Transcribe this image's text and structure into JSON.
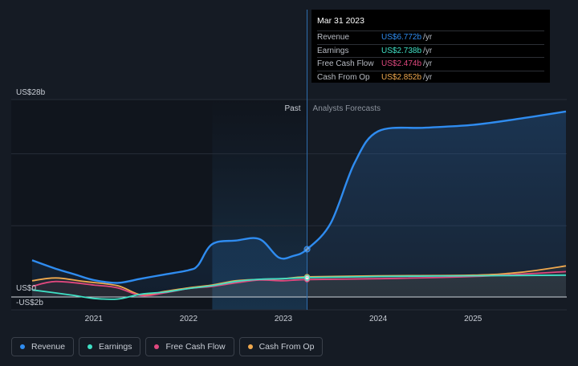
{
  "chart_data": {
    "type": "line",
    "y_unit_labels": {
      "top": "US$28b",
      "zero": "US$0",
      "bottom": "-US$2b"
    },
    "ylim": [
      -2,
      28
    ],
    "xlim": [
      2020.35,
      2025.98
    ],
    "x_ticks": [
      "2021",
      "2022",
      "2023",
      "2024",
      "2025"
    ],
    "x_tick_values": [
      2021,
      2022,
      2023,
      2024,
      2025
    ],
    "divider_x": 2023.25,
    "past_label": "Past",
    "forecast_label": "Analysts Forecasts",
    "series": [
      {
        "name": "Revenue",
        "color": "#2f8cf0",
        "points": [
          [
            2020.35,
            5.2
          ],
          [
            2020.6,
            4.0
          ],
          [
            2020.8,
            3.2
          ],
          [
            2021.0,
            2.4
          ],
          [
            2021.25,
            2.0
          ],
          [
            2021.5,
            2.6
          ],
          [
            2021.75,
            3.2
          ],
          [
            2022.0,
            3.8
          ],
          [
            2022.1,
            4.5
          ],
          [
            2022.25,
            7.5
          ],
          [
            2022.5,
            8.0
          ],
          [
            2022.75,
            8.2
          ],
          [
            2022.95,
            5.6
          ],
          [
            2023.1,
            5.8
          ],
          [
            2023.25,
            6.772
          ],
          [
            2023.5,
            10.5
          ],
          [
            2023.75,
            19.0
          ],
          [
            2024.0,
            23.5
          ],
          [
            2024.5,
            24.0
          ],
          [
            2025.0,
            24.4
          ],
          [
            2025.5,
            25.3
          ],
          [
            2025.98,
            26.3
          ]
        ]
      },
      {
        "name": "Earnings",
        "color": "#3fe0c5",
        "points": [
          [
            2020.35,
            1.0
          ],
          [
            2020.75,
            0.3
          ],
          [
            2021.0,
            -0.2
          ],
          [
            2021.25,
            -0.3
          ],
          [
            2021.5,
            0.4
          ],
          [
            2021.75,
            0.7
          ],
          [
            2022.0,
            1.2
          ],
          [
            2022.25,
            1.6
          ],
          [
            2022.5,
            2.2
          ],
          [
            2022.75,
            2.5
          ],
          [
            2023.0,
            2.6
          ],
          [
            2023.25,
            2.738
          ],
          [
            2024.0,
            2.9
          ],
          [
            2025.0,
            3.0
          ],
          [
            2025.98,
            3.1
          ]
        ]
      },
      {
        "name": "Free Cash Flow",
        "color": "#e0487e",
        "points": [
          [
            2020.35,
            1.5
          ],
          [
            2020.6,
            2.2
          ],
          [
            2021.0,
            1.7
          ],
          [
            2021.25,
            1.3
          ],
          [
            2021.5,
            0.2
          ],
          [
            2021.75,
            0.6
          ],
          [
            2022.0,
            1.2
          ],
          [
            2022.25,
            1.5
          ],
          [
            2022.5,
            2.0
          ],
          [
            2022.75,
            2.4
          ],
          [
            2023.0,
            2.3
          ],
          [
            2023.25,
            2.474
          ],
          [
            2024.0,
            2.6
          ],
          [
            2025.0,
            2.9
          ],
          [
            2025.98,
            3.6
          ]
        ]
      },
      {
        "name": "Cash From Op",
        "color": "#f0a94e",
        "points": [
          [
            2020.35,
            2.3
          ],
          [
            2020.6,
            2.7
          ],
          [
            2020.9,
            2.2
          ],
          [
            2021.25,
            1.6
          ],
          [
            2021.5,
            0.3
          ],
          [
            2021.75,
            0.8
          ],
          [
            2022.0,
            1.3
          ],
          [
            2022.25,
            1.7
          ],
          [
            2022.5,
            2.3
          ],
          [
            2022.75,
            2.5
          ],
          [
            2023.0,
            2.6
          ],
          [
            2023.25,
            2.852
          ],
          [
            2024.0,
            3.0
          ],
          [
            2025.0,
            3.1
          ],
          [
            2025.5,
            3.5
          ],
          [
            2025.98,
            4.4
          ]
        ]
      }
    ]
  },
  "tooltip": {
    "date": "Mar 31 2023",
    "rows": [
      {
        "label": "Revenue",
        "value": "US$6.772b",
        "unit": "/yr",
        "color": "#2f8cf0"
      },
      {
        "label": "Earnings",
        "value": "US$2.738b",
        "unit": "/yr",
        "color": "#3fe0c5"
      },
      {
        "label": "Free Cash Flow",
        "value": "US$2.474b",
        "unit": "/yr",
        "color": "#e0487e"
      },
      {
        "label": "Cash From Op",
        "value": "US$2.852b",
        "unit": "/yr",
        "color": "#f0a94e"
      }
    ]
  },
  "legend": [
    {
      "label": "Revenue",
      "color": "#2f8cf0"
    },
    {
      "label": "Earnings",
      "color": "#3fe0c5"
    },
    {
      "label": "Free Cash Flow",
      "color": "#e0487e"
    },
    {
      "label": "Cash From Op",
      "color": "#f0a94e"
    }
  ]
}
